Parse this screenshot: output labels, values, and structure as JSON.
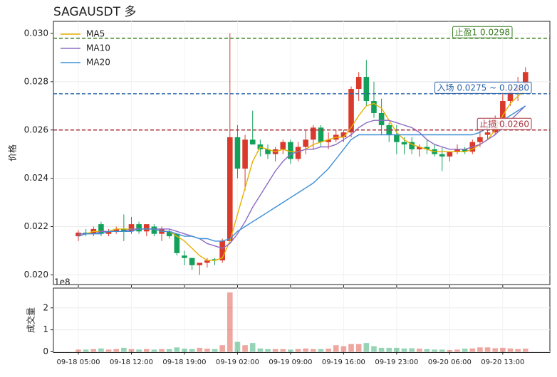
{
  "chart_data": {
    "type": "candlestick",
    "title": "SAGAUSDT  多",
    "ylabel": "价格",
    "ylim": [
      0.0196,
      0.0305
    ],
    "yticks": [
      {
        "value": 0.02,
        "label": "0.020"
      },
      0.022,
      0.024,
      0.026,
      0.028,
      {
        "value": 0.03,
        "label": "0.030"
      }
    ],
    "grid": true,
    "up_color": "#d93a2b",
    "down_color": "#13a05a",
    "xticks": [
      {
        "value": 0,
        "label": "09-18 05:00"
      },
      {
        "value": 7,
        "label": "09-18 12:00"
      },
      {
        "value": 14,
        "label": "09-18 19:00"
      },
      {
        "value": 21,
        "label": "09-19 02:00"
      },
      {
        "value": 28,
        "label": "09-19 09:00"
      },
      {
        "value": 35,
        "label": "09-19 16:00"
      },
      {
        "value": 42,
        "label": "09-19 23:00"
      },
      {
        "value": 49,
        "label": "09-20 06:00"
      },
      {
        "value": 56,
        "label": "09-20 13:00"
      }
    ],
    "open": [
      0.0216,
      0.02175,
      0.0217,
      0.0221,
      0.0217,
      0.0218,
      0.0219,
      0.0218,
      0.0221,
      0.0218,
      0.022,
      0.0217,
      0.0218,
      0.0217,
      0.0208,
      0.0207,
      0.0204,
      0.0205,
      0.02065,
      0.0206,
      0.0214,
      0.0257,
      0.0244,
      0.0256,
      0.0254,
      0.0252,
      0.025,
      0.0252,
      0.0255,
      0.0248,
      0.0253,
      0.0256,
      0.0261,
      0.0255,
      0.0256,
      0.0257,
      0.0259,
      0.0277,
      0.0282,
      0.0272,
      0.0267,
      0.0262,
      0.0258,
      0.0255,
      0.0255,
      0.0252,
      0.0253,
      0.0252,
      0.025,
      0.0249,
      0.0251,
      0.0252,
      0.0251,
      0.0255,
      0.0258,
      0.0259,
      0.0265,
      0.0272,
      0.0276,
      0.0279
    ],
    "high": [
      0.02185,
      0.0219,
      0.022,
      0.0222,
      0.0219,
      0.022,
      0.0225,
      0.0224,
      0.0222,
      0.022,
      0.0221,
      0.022,
      0.0219,
      0.0217,
      0.021,
      0.0207,
      0.0205,
      0.0207,
      0.0207,
      0.0215,
      0.03,
      0.0262,
      0.0258,
      0.0268,
      0.0256,
      0.0254,
      0.0253,
      0.0256,
      0.0256,
      0.0255,
      0.026,
      0.0262,
      0.0262,
      0.0259,
      0.026,
      0.026,
      0.0278,
      0.0284,
      0.0289,
      0.028,
      0.0273,
      0.0263,
      0.0262,
      0.0257,
      0.0257,
      0.0254,
      0.0256,
      0.0254,
      0.0253,
      0.0251,
      0.0254,
      0.0253,
      0.0256,
      0.026,
      0.0262,
      0.0266,
      0.0276,
      0.0278,
      0.0282,
      0.0286
    ],
    "low": [
      0.0214,
      0.0216,
      0.0216,
      0.0216,
      0.0216,
      0.0217,
      0.0214,
      0.0217,
      0.0217,
      0.0216,
      0.0216,
      0.0214,
      0.0215,
      0.0208,
      0.0204,
      0.0202,
      0.02,
      0.0203,
      0.0204,
      0.0205,
      0.0213,
      0.024,
      0.0235,
      0.0254,
      0.0249,
      0.0248,
      0.0247,
      0.025,
      0.0246,
      0.0247,
      0.025,
      0.0252,
      0.0253,
      0.0252,
      0.0255,
      0.0255,
      0.0257,
      0.0272,
      0.027,
      0.0265,
      0.0258,
      0.0255,
      0.025,
      0.025,
      0.025,
      0.0249,
      0.025,
      0.0249,
      0.0243,
      0.0247,
      0.025,
      0.025,
      0.025,
      0.0253,
      0.0256,
      0.0258,
      0.0264,
      0.027,
      0.0272,
      0.0277
    ],
    "close": [
      0.02175,
      0.0217,
      0.0219,
      0.0217,
      0.0218,
      0.0219,
      0.0218,
      0.0221,
      0.0218,
      0.0221,
      0.0217,
      0.0219,
      0.0216,
      0.0209,
      0.0207,
      0.0204,
      0.0205,
      0.0206,
      0.0206,
      0.0214,
      0.0257,
      0.0244,
      0.0256,
      0.0254,
      0.0252,
      0.025,
      0.0252,
      0.0255,
      0.0248,
      0.0253,
      0.0256,
      0.0261,
      0.0255,
      0.0256,
      0.0258,
      0.0259,
      0.0277,
      0.0282,
      0.0272,
      0.0267,
      0.0262,
      0.0258,
      0.0255,
      0.0254,
      0.0252,
      0.0253,
      0.0252,
      0.025,
      0.0249,
      0.0251,
      0.0252,
      0.0251,
      0.0255,
      0.0257,
      0.0259,
      0.0264,
      0.0272,
      0.0276,
      0.0278,
      0.0284
    ],
    "series": [
      {
        "name": "MA5",
        "color": "#e6b000",
        "values": [
          0.0217,
          0.0217,
          0.0218,
          0.0218,
          0.0218,
          0.0219,
          0.0219,
          0.0219,
          0.0219,
          0.0219,
          0.0219,
          0.0218,
          0.0218,
          0.0216,
          0.0214,
          0.0211,
          0.0208,
          0.0206,
          0.0206,
          0.0207,
          0.0214,
          0.0225,
          0.0236,
          0.0247,
          0.0253,
          0.0252,
          0.0251,
          0.0252,
          0.0251,
          0.0251,
          0.0252,
          0.0254,
          0.0255,
          0.0256,
          0.0257,
          0.0257,
          0.0261,
          0.0266,
          0.027,
          0.0271,
          0.0269,
          0.0264,
          0.0259,
          0.0256,
          0.0254,
          0.0253,
          0.0252,
          0.0251,
          0.0251,
          0.0251,
          0.0251,
          0.0251,
          0.0252,
          0.0254,
          0.0256,
          0.026,
          0.0266,
          0.0271,
          0.0274,
          0.0277
        ]
      },
      {
        "name": "MA10",
        "color": "#8c6bc4",
        "values": [
          0.0217,
          0.0217,
          0.0217,
          0.0218,
          0.0218,
          0.0218,
          0.0218,
          0.0219,
          0.0219,
          0.0219,
          0.0219,
          0.0219,
          0.0219,
          0.0218,
          0.0217,
          0.0216,
          0.0215,
          0.0213,
          0.0212,
          0.0211,
          0.0213,
          0.0217,
          0.0222,
          0.0228,
          0.0233,
          0.0238,
          0.0243,
          0.0247,
          0.025,
          0.0251,
          0.0252,
          0.0252,
          0.0253,
          0.0253,
          0.0254,
          0.0256,
          0.0258,
          0.0261,
          0.0263,
          0.0264,
          0.0264,
          0.0264,
          0.0263,
          0.0262,
          0.0261,
          0.0259,
          0.0256,
          0.0254,
          0.0253,
          0.0252,
          0.0252,
          0.0252,
          0.0253,
          0.0254,
          0.0256,
          0.0258,
          0.0261,
          0.0264,
          0.0267,
          0.027
        ]
      },
      {
        "name": "MA20",
        "color": "#3d8fd6",
        "values": [
          0.0216,
          0.0217,
          0.0217,
          0.0217,
          0.0218,
          0.0218,
          0.0218,
          0.0218,
          0.0219,
          0.0219,
          0.0219,
          0.0218,
          0.0218,
          0.0217,
          0.0216,
          0.0216,
          0.0215,
          0.0215,
          0.0214,
          0.0214,
          0.0215,
          0.0218,
          0.022,
          0.0222,
          0.0224,
          0.0226,
          0.0228,
          0.023,
          0.0232,
          0.0234,
          0.0236,
          0.0238,
          0.0241,
          0.0244,
          0.0248,
          0.0252,
          0.0256,
          0.0258,
          0.0258,
          0.0258,
          0.0258,
          0.0258,
          0.0258,
          0.0258,
          0.0258,
          0.0258,
          0.0258,
          0.0258,
          0.0258,
          0.0258,
          0.0258,
          0.0258,
          0.0258,
          0.0259,
          0.0261,
          0.0262,
          0.0264,
          0.0266,
          0.0268,
          0.027
        ]
      }
    ],
    "legend": "upper left",
    "levels": [
      {
        "label": "止盈1 0.0298",
        "value": 0.0298,
        "color": "#3a7d22"
      },
      {
        "label": "入场 0.0275 ~ 0.0280",
        "value": 0.0275,
        "color": "#2a62a8"
      },
      {
        "label": "止损 0.0260",
        "value": 0.026,
        "color": "#a8323c"
      }
    ],
    "volume": {
      "ylabel": "成交量",
      "scale_label": "1e8",
      "ylim": [
        0,
        2.9
      ],
      "yticks": [
        0,
        1,
        2
      ],
      "values": [
        0.1,
        0.1,
        0.12,
        0.15,
        0.1,
        0.12,
        0.18,
        0.12,
        0.1,
        0.12,
        0.1,
        0.12,
        0.12,
        0.2,
        0.14,
        0.12,
        0.18,
        0.14,
        0.12,
        0.3,
        2.7,
        0.45,
        0.3,
        0.4,
        0.15,
        0.12,
        0.12,
        0.12,
        0.1,
        0.12,
        0.15,
        0.12,
        0.12,
        0.14,
        0.3,
        0.25,
        0.35,
        0.35,
        0.4,
        0.25,
        0.18,
        0.18,
        0.18,
        0.15,
        0.16,
        0.14,
        0.12,
        0.1,
        0.1,
        0.08,
        0.1,
        0.14,
        0.15,
        0.2,
        0.2,
        0.16,
        0.18,
        0.15,
        0.12,
        0.14
      ]
    }
  }
}
